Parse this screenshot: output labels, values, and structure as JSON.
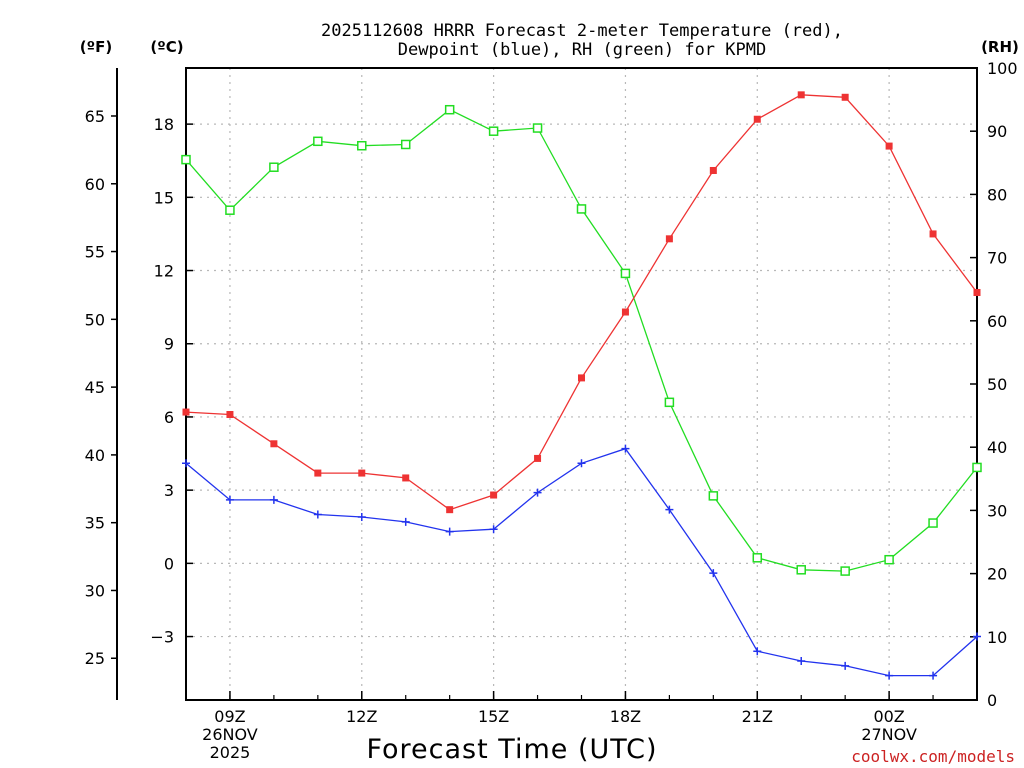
{
  "chart_data": {
    "type": "line",
    "title_line1": "2025112608 HRRR Forecast 2-meter Temperature (red),",
    "title_line2": "Dewpoint (blue), RH (green) for KPMD",
    "unit_labels": {
      "fahrenheit": "(ºF)",
      "celsius": "(ºC)",
      "rh": "(RH)"
    },
    "xlabel": "Forecast Time (UTC)",
    "credit": "coolwx.com/models",
    "x_hours": [
      8,
      9,
      10,
      11,
      12,
      13,
      14,
      15,
      16,
      17,
      18,
      19,
      20,
      21,
      22,
      23,
      24,
      25,
      26
    ],
    "xlim": [
      8,
      26
    ],
    "x_ticks": [
      {
        "x": 9,
        "lines": [
          "09Z",
          "26NOV",
          "2025"
        ]
      },
      {
        "x": 12,
        "lines": [
          "12Z"
        ]
      },
      {
        "x": 15,
        "lines": [
          "15Z"
        ]
      },
      {
        "x": 18,
        "lines": [
          "18Z"
        ]
      },
      {
        "x": 21,
        "lines": [
          "21Z"
        ]
      },
      {
        "x": 24,
        "lines": [
          "00Z",
          "27NOV"
        ]
      }
    ],
    "celsius_axis": {
      "ylim": [
        -5.6,
        20.3
      ],
      "ticks": [
        -3,
        0,
        3,
        6,
        9,
        12,
        15,
        18
      ],
      "tick_labels": [
        "−3",
        "0",
        "3",
        "6",
        "9",
        "12",
        "15",
        "18"
      ]
    },
    "fahrenheit_axis": {
      "ticks": [
        25,
        30,
        35,
        40,
        45,
        50,
        55,
        60,
        65
      ],
      "tick_labels": [
        "25",
        "30",
        "35",
        "40",
        "45",
        "50",
        "55",
        "60",
        "65"
      ]
    },
    "rh_axis": {
      "ylim": [
        0,
        100
      ],
      "ticks": [
        0,
        10,
        20,
        30,
        40,
        50,
        60,
        70,
        80,
        90,
        100
      ],
      "tick_labels": [
        "0",
        "10",
        "20",
        "30",
        "40",
        "50",
        "60",
        "70",
        "80",
        "90",
        "100"
      ]
    },
    "grid": true,
    "series": [
      {
        "name": "Temperature",
        "unit": "C",
        "color": "#ee3333",
        "marker": "filled-square",
        "values": [
          6.2,
          6.1,
          4.9,
          3.7,
          3.7,
          3.5,
          2.2,
          2.8,
          4.3,
          7.6,
          10.3,
          13.3,
          16.1,
          18.2,
          19.2,
          19.1,
          17.1,
          13.5,
          11.1
        ]
      },
      {
        "name": "Dewpoint",
        "unit": "C",
        "color": "#2233ee",
        "marker": "plus",
        "values": [
          4.1,
          2.6,
          2.6,
          2.0,
          1.9,
          1.7,
          1.3,
          1.4,
          2.9,
          4.1,
          4.7,
          2.2,
          -0.4,
          -3.6,
          -4.0,
          -4.2,
          -4.6,
          -4.6,
          -3.0
        ]
      },
      {
        "name": "RH",
        "unit": "%",
        "color": "#22dd22",
        "marker": "open-square",
        "values": [
          85.5,
          77.5,
          84.3,
          88.4,
          87.7,
          87.9,
          93.4,
          90.0,
          90.5,
          77.7,
          67.5,
          47.1,
          32.3,
          22.5,
          20.6,
          20.4,
          22.2,
          28.0,
          36.8
        ]
      }
    ]
  }
}
